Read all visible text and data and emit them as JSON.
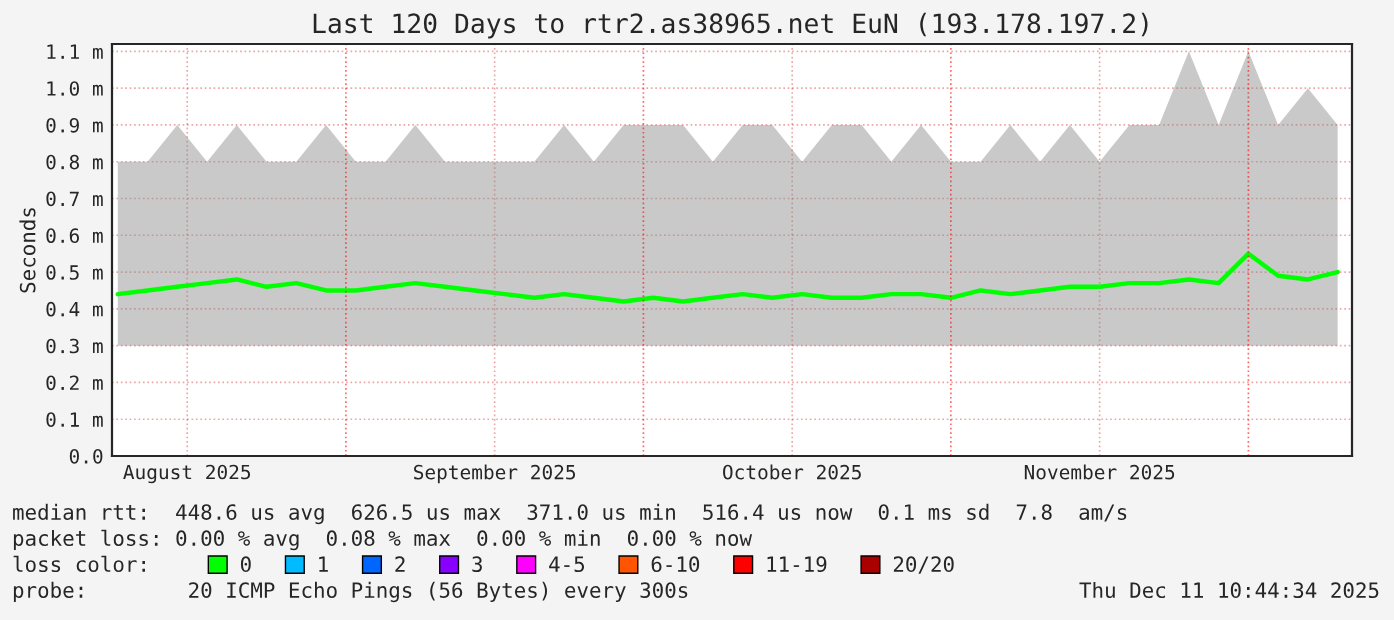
{
  "chart_data": {
    "type": "line",
    "title": "Last 120 Days to rtr2.as38965.net EuN (193.178.197.2)",
    "ylabel": "Seconds",
    "x": [
      "2025-08-09",
      "2025-08-12",
      "2025-08-15",
      "2025-08-18",
      "2025-08-21",
      "2025-08-24",
      "2025-08-27",
      "2025-08-30",
      "2025-09-02",
      "2025-09-05",
      "2025-09-08",
      "2025-09-11",
      "2025-09-14",
      "2025-09-17",
      "2025-09-20",
      "2025-09-23",
      "2025-09-26",
      "2025-09-29",
      "2025-10-02",
      "2025-10-05",
      "2025-10-08",
      "2025-10-11",
      "2025-10-14",
      "2025-10-17",
      "2025-10-20",
      "2025-10-23",
      "2025-10-26",
      "2025-10-29",
      "2025-11-01",
      "2025-11-04",
      "2025-11-07",
      "2025-11-10",
      "2025-11-13",
      "2025-11-16",
      "2025-11-19",
      "2025-11-22",
      "2025-11-25",
      "2025-11-28",
      "2025-12-01",
      "2025-12-04",
      "2025-12-07",
      "2025-12-10"
    ],
    "series": [
      {
        "name": "0",
        "color": "#00ff00",
        "values": [
          0.44,
          0.45,
          0.46,
          0.47,
          0.48,
          0.46,
          0.47,
          0.45,
          0.45,
          0.46,
          0.47,
          0.46,
          0.45,
          0.44,
          0.43,
          0.44,
          0.43,
          0.42,
          0.43,
          0.42,
          0.43,
          0.44,
          0.43,
          0.44,
          0.43,
          0.43,
          0.44,
          0.44,
          0.43,
          0.45,
          0.44,
          0.45,
          0.46,
          0.46,
          0.47,
          0.47,
          0.48,
          0.47,
          0.55,
          0.49,
          0.48,
          0.5
        ],
        "lower": [
          0.3,
          0.3,
          0.3,
          0.3,
          0.3,
          0.3,
          0.3,
          0.3,
          0.3,
          0.3,
          0.3,
          0.3,
          0.3,
          0.3,
          0.3,
          0.3,
          0.3,
          0.3,
          0.3,
          0.3,
          0.3,
          0.3,
          0.3,
          0.3,
          0.3,
          0.3,
          0.3,
          0.3,
          0.3,
          0.3,
          0.3,
          0.3,
          0.3,
          0.3,
          0.3,
          0.3,
          0.3,
          0.3,
          0.3,
          0.3,
          0.3,
          0.3
        ],
        "upper": [
          0.8,
          0.8,
          0.9,
          0.8,
          0.9,
          0.8,
          0.8,
          0.9,
          0.8,
          0.8,
          0.9,
          0.8,
          0.8,
          0.8,
          0.8,
          0.9,
          0.8,
          0.9,
          0.9,
          0.9,
          0.8,
          0.9,
          0.9,
          0.8,
          0.9,
          0.9,
          0.8,
          0.9,
          0.8,
          0.8,
          0.9,
          0.8,
          0.9,
          0.8,
          0.9,
          0.9,
          1.1,
          0.9,
          1.1,
          0.9,
          1.0,
          0.9
        ]
      },
      {
        "name": "1",
        "color": "#00bbff",
        "values": [
          null,
          null,
          null,
          null,
          null,
          null,
          null,
          null,
          null,
          null,
          null,
          null,
          null,
          null,
          null,
          null,
          null,
          null,
          null,
          null,
          null,
          null,
          null,
          null,
          null,
          null,
          null,
          null,
          null,
          null,
          null,
          null,
          null,
          null,
          null,
          null,
          null,
          null,
          null,
          null,
          null,
          null
        ]
      },
      {
        "name": "2",
        "color": "#0066ff",
        "values": [
          null,
          null,
          null,
          null,
          null,
          null,
          null,
          null,
          null,
          null,
          null,
          null,
          null,
          null,
          null,
          null,
          null,
          null,
          null,
          null,
          null,
          null,
          null,
          null,
          null,
          null,
          null,
          null,
          null,
          null,
          null,
          null,
          null,
          null,
          null,
          null,
          null,
          null,
          null,
          null,
          null,
          null
        ]
      },
      {
        "name": "3",
        "color": "#8800ff",
        "values": [
          null,
          null,
          null,
          null,
          null,
          null,
          null,
          null,
          null,
          null,
          null,
          null,
          null,
          null,
          null,
          null,
          null,
          null,
          null,
          null,
          null,
          null,
          null,
          null,
          null,
          null,
          null,
          null,
          null,
          null,
          null,
          null,
          null,
          null,
          null,
          null,
          null,
          null,
          null,
          null,
          null,
          null
        ]
      },
      {
        "name": "4-5",
        "color": "#ff00ff",
        "values": [
          null,
          null,
          null,
          null,
          null,
          null,
          null,
          null,
          null,
          null,
          null,
          null,
          null,
          null,
          null,
          null,
          null,
          null,
          null,
          null,
          null,
          null,
          null,
          null,
          null,
          null,
          null,
          null,
          null,
          null,
          null,
          null,
          null,
          null,
          null,
          null,
          null,
          null,
          null,
          null,
          null,
          null
        ]
      },
      {
        "name": "6-10",
        "color": "#ff5500",
        "values": [
          null,
          null,
          null,
          null,
          null,
          null,
          null,
          null,
          null,
          null,
          null,
          null,
          null,
          null,
          null,
          null,
          null,
          null,
          null,
          null,
          null,
          null,
          null,
          null,
          null,
          null,
          null,
          null,
          null,
          null,
          null,
          null,
          null,
          null,
          null,
          null,
          null,
          null,
          null,
          null,
          null,
          null
        ]
      },
      {
        "name": "11-19",
        "color": "#ff0000",
        "values": [
          null,
          null,
          null,
          null,
          null,
          null,
          null,
          null,
          null,
          null,
          null,
          null,
          null,
          null,
          null,
          null,
          null,
          null,
          null,
          null,
          null,
          null,
          null,
          null,
          null,
          null,
          null,
          null,
          null,
          null,
          null,
          null,
          null,
          null,
          null,
          null,
          null,
          null,
          null,
          null,
          null,
          null
        ]
      },
      {
        "name": "20/20",
        "color": "#aa0000",
        "values": [
          null,
          null,
          null,
          null,
          null,
          null,
          null,
          null,
          null,
          null,
          null,
          null,
          null,
          null,
          null,
          null,
          null,
          null,
          null,
          null,
          null,
          null,
          null,
          null,
          null,
          null,
          null,
          null,
          null,
          null,
          null,
          null,
          null,
          null,
          null,
          null,
          null,
          null,
          null,
          null,
          null,
          null
        ]
      }
    ],
    "legend_title": "loss color:",
    "legend": "bottom",
    "xlim": [
      "2025-08-08T10:00",
      "2025-12-11T10:44"
    ],
    "xticks": [
      {
        "value": "2025-08-16",
        "label": "August 2025"
      },
      {
        "value": "2025-09-16",
        "label": "September 2025"
      },
      {
        "value": "2025-10-16",
        "label": "October 2025"
      },
      {
        "value": "2025-11-16",
        "label": "November 2025"
      }
    ],
    "ylim": [
      0,
      1.12
    ],
    "yticks": [
      {
        "value": 0,
        "label": "0.0"
      },
      {
        "value": 0.1,
        "label": "0.1 m"
      },
      {
        "value": 0.2,
        "label": "0.2 m"
      },
      {
        "value": 0.3,
        "label": "0.3 m"
      },
      {
        "value": 0.4,
        "label": "0.4 m"
      },
      {
        "value": 0.5,
        "label": "0.5 m"
      },
      {
        "value": 0.6,
        "label": "0.6 m"
      },
      {
        "value": 0.7,
        "label": "0.7 m"
      },
      {
        "value": 0.8,
        "label": "0.8 m"
      },
      {
        "value": 0.9,
        "label": "0.9 m"
      },
      {
        "value": 1.0,
        "label": "1.0 m"
      },
      {
        "value": 1.1,
        "label": "1.1 m"
      }
    ],
    "grid": true,
    "ref_lines": [
      {
        "axis": "x",
        "value": "2025-09-01",
        "color": "#ff0000",
        "line_style": "dotted"
      },
      {
        "axis": "x",
        "value": "2025-10-01",
        "color": "#ff0000",
        "line_style": "dotted"
      },
      {
        "axis": "x",
        "value": "2025-11-01",
        "color": "#ff0000",
        "line_style": "dotted"
      },
      {
        "axis": "x",
        "value": "2025-12-01",
        "color": "#ff0000",
        "line_style": "dotted"
      }
    ],
    "annotations": [
      "median rtt:  448.6 us avg  626.5 us max  371.0 us min  516.4 us now  0.1 ms sd  7.8  am/s",
      "packet loss: 0.00 % avg  0.08 % max  0.00 % min  0.00 % now",
      "probe:        20 ICMP Echo Pings (56 Bytes) every 300s",
      "Thu Dec 11 10:44:34 2025"
    ]
  }
}
